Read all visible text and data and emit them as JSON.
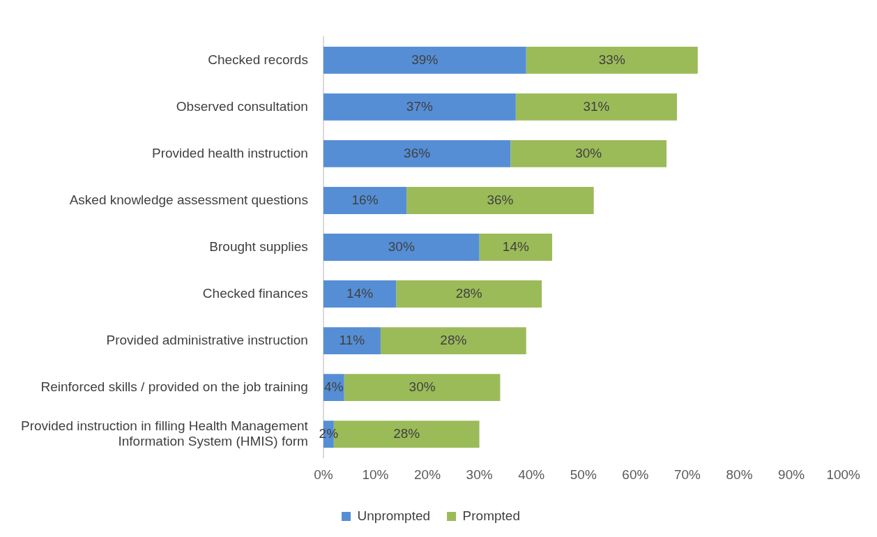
{
  "chart_data": {
    "type": "bar",
    "orientation": "horizontal",
    "stacked": true,
    "categories": [
      "Checked records",
      "Observed consultation",
      "Provided health instruction",
      "Asked knowledge assessment questions",
      "Brought supplies",
      "Checked finances",
      "Provided administrative instruction",
      "Reinforced skills / provided on the job training",
      "Provided instruction in filling Health Management Information System (HMIS) form"
    ],
    "series": [
      {
        "name": "Unprompted",
        "color": "#558ed5",
        "values": [
          39,
          37,
          36,
          16,
          30,
          14,
          11,
          4,
          2
        ],
        "value_labels": [
          "39%",
          "37%",
          "36%",
          "16%",
          "30%",
          "14%",
          "11%",
          "4%",
          "2%"
        ]
      },
      {
        "name": "Prompted",
        "color": "#9bbb59",
        "values": [
          33,
          31,
          30,
          36,
          14,
          28,
          28,
          30,
          28
        ],
        "value_labels": [
          "33%",
          "31%",
          "30%",
          "36%",
          "14%",
          "28%",
          "28%",
          "30%",
          "28%"
        ]
      }
    ],
    "xlim": [
      0,
      100
    ],
    "xticks": [
      {
        "value": 0,
        "label": "0%"
      },
      {
        "value": 10,
        "label": "10%"
      },
      {
        "value": 20,
        "label": "20%"
      },
      {
        "value": 30,
        "label": "30%"
      },
      {
        "value": 40,
        "label": "40%"
      },
      {
        "value": 50,
        "label": "50%"
      },
      {
        "value": 60,
        "label": "60%"
      },
      {
        "value": 70,
        "label": "70%"
      },
      {
        "value": 80,
        "label": "80%"
      },
      {
        "value": 90,
        "label": "90%"
      },
      {
        "value": 100,
        "label": "100%"
      }
    ],
    "grid": false,
    "legend": "bottom"
  }
}
